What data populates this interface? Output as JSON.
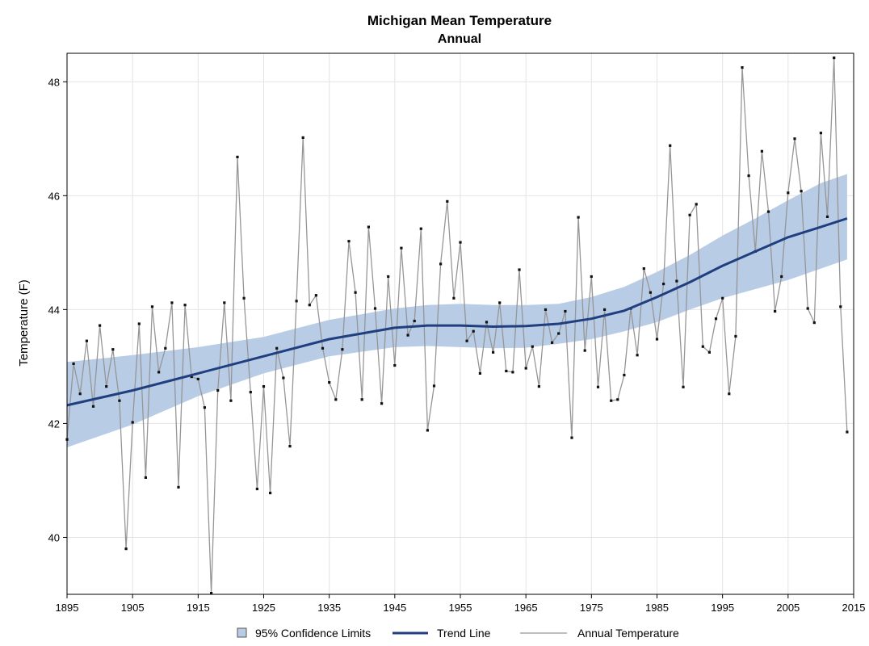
{
  "chart_data": {
    "type": "line",
    "title": "Michigan Mean Temperature",
    "subtitle": "Annual",
    "xlabel": "",
    "ylabel": "Temperature (F)",
    "xlim": [
      1895,
      2015
    ],
    "ylim": [
      39.0,
      48.5
    ],
    "x_ticks": [
      1895,
      1905,
      1915,
      1925,
      1935,
      1945,
      1955,
      1965,
      1975,
      1985,
      1995,
      2005,
      2015
    ],
    "y_ticks": [
      40,
      42,
      44,
      46,
      48
    ],
    "grid": true,
    "legend_position": "bottom",
    "legend": [
      {
        "label": "95% Confidence Limits",
        "kind": "band"
      },
      {
        "label": "Trend Line",
        "kind": "line"
      },
      {
        "label": "Annual Temperature",
        "kind": "line"
      }
    ],
    "colors": {
      "band": "#b8cce6",
      "trend": "#1f3f7f",
      "annual": "#969696",
      "marker": "#111111",
      "grid": "#e4e4e4",
      "frame": "#000000"
    },
    "series": [
      {
        "name": "Annual Temperature",
        "x": [
          1895,
          1896,
          1897,
          1898,
          1899,
          1900,
          1901,
          1902,
          1903,
          1904,
          1905,
          1906,
          1907,
          1908,
          1909,
          1910,
          1911,
          1912,
          1913,
          1914,
          1915,
          1916,
          1917,
          1918,
          1919,
          1920,
          1921,
          1922,
          1923,
          1924,
          1925,
          1926,
          1927,
          1928,
          1929,
          1930,
          1931,
          1932,
          1933,
          1934,
          1935,
          1936,
          1937,
          1938,
          1939,
          1940,
          1941,
          1942,
          1943,
          1944,
          1945,
          1946,
          1947,
          1948,
          1949,
          1950,
          1951,
          1952,
          1953,
          1954,
          1955,
          1956,
          1957,
          1958,
          1959,
          1960,
          1961,
          1962,
          1963,
          1964,
          1965,
          1966,
          1967,
          1968,
          1969,
          1970,
          1971,
          1972,
          1973,
          1974,
          1975,
          1976,
          1977,
          1978,
          1979,
          1980,
          1981,
          1982,
          1983,
          1984,
          1985,
          1986,
          1987,
          1988,
          1989,
          1990,
          1991,
          1992,
          1993,
          1994,
          1995,
          1996,
          1997,
          1998,
          1999,
          2000,
          2001,
          2002,
          2003,
          2004,
          2005,
          2006,
          2007,
          2008,
          2009,
          2010,
          2011,
          2012,
          2013,
          2014
        ],
        "y": [
          41.72,
          43.05,
          42.52,
          43.45,
          42.3,
          43.72,
          42.65,
          43.3,
          42.4,
          39.8,
          42.02,
          43.75,
          41.05,
          44.05,
          42.9,
          43.32,
          44.12,
          40.88,
          44.08,
          42.82,
          42.78,
          42.28,
          39.02,
          42.58,
          44.12,
          42.4,
          46.68,
          44.2,
          42.55,
          40.85,
          42.65,
          40.78,
          43.32,
          42.8,
          41.6,
          44.15,
          47.02,
          44.08,
          44.25,
          43.32,
          42.72,
          42.42,
          43.3,
          45.2,
          44.3,
          42.42,
          45.45,
          44.02,
          42.35,
          44.58,
          43.02,
          45.08,
          43.55,
          43.8,
          45.42,
          41.88,
          42.66,
          44.8,
          45.9,
          44.2,
          45.18,
          43.45,
          43.62,
          42.88,
          43.78,
          43.25,
          44.12,
          42.92,
          42.9,
          44.7,
          42.97,
          43.35,
          42.65,
          44.0,
          43.42,
          43.58,
          43.97,
          41.75,
          45.62,
          43.28,
          44.58,
          42.64,
          44.0,
          42.4,
          42.42,
          42.85,
          44.02,
          43.2,
          44.72,
          44.3,
          43.48,
          44.45,
          46.88,
          44.5,
          42.64,
          45.66,
          45.85,
          43.35,
          43.25,
          43.84,
          44.2,
          42.52,
          43.53,
          48.25,
          46.35,
          45.02,
          46.78,
          45.72,
          43.97,
          44.58,
          46.05,
          47.0,
          46.08,
          44.02,
          43.77,
          47.1,
          45.63,
          48.42,
          44.05,
          41.85
        ]
      },
      {
        "name": "Trend Line",
        "x": [
          1895,
          1905,
          1915,
          1925,
          1935,
          1945,
          1950,
          1955,
          1960,
          1965,
          1970,
          1975,
          1980,
          1985,
          1990,
          1995,
          2000,
          2005,
          2010,
          2014
        ],
        "y": [
          42.32,
          42.58,
          42.88,
          43.18,
          43.48,
          43.68,
          43.72,
          43.72,
          43.7,
          43.71,
          43.75,
          43.84,
          43.98,
          44.22,
          44.48,
          44.77,
          45.02,
          45.27,
          45.45,
          45.6
        ]
      },
      {
        "name": "95% Confidence Limits",
        "x": [
          1895,
          1905,
          1915,
          1925,
          1935,
          1945,
          1950,
          1955,
          1960,
          1965,
          1970,
          1975,
          1980,
          1985,
          1990,
          1995,
          2000,
          2005,
          2010,
          2014
        ],
        "lower": [
          41.58,
          41.98,
          42.48,
          42.88,
          43.18,
          43.34,
          43.36,
          43.34,
          43.32,
          43.33,
          43.4,
          43.48,
          43.62,
          43.78,
          44.0,
          44.2,
          44.36,
          44.52,
          44.72,
          44.88
        ],
        "upper": [
          43.08,
          43.2,
          43.34,
          43.52,
          43.82,
          44.02,
          44.08,
          44.1,
          44.08,
          44.08,
          44.1,
          44.22,
          44.4,
          44.66,
          44.96,
          45.3,
          45.6,
          45.92,
          46.22,
          46.38
        ]
      }
    ]
  }
}
